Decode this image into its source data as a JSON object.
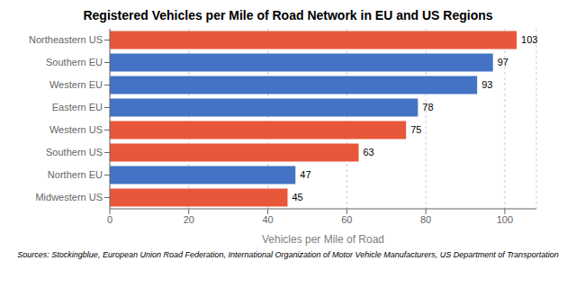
{
  "chart_data": {
    "type": "bar",
    "orientation": "horizontal",
    "title": "Registered Vehicles per Mile of Road Network in EU and US Regions",
    "xlabel": "Vehicles per Mile of Road",
    "caption": "Sources: Stockingblue, European Union Road Federation, International Organization of Motor Vehicle Manufacturers, US Department of Transportation",
    "categories": [
      "Midwestern US",
      "Northern EU",
      "Southern US",
      "Western US",
      "Eastern EU",
      "Western EU",
      "Southern EU",
      "Northeastern US"
    ],
    "values": [
      45,
      47,
      63,
      75,
      78,
      93,
      97,
      103
    ],
    "colors": [
      "#E8573A",
      "#4472C4",
      "#E8573A",
      "#E8573A",
      "#4472C4",
      "#4472C4",
      "#4472C4",
      "#E8573A"
    ],
    "xlim": [
      0,
      108
    ],
    "xticks": [
      0,
      20,
      40,
      60,
      80,
      100
    ],
    "grid": true,
    "data_labels": true
  }
}
